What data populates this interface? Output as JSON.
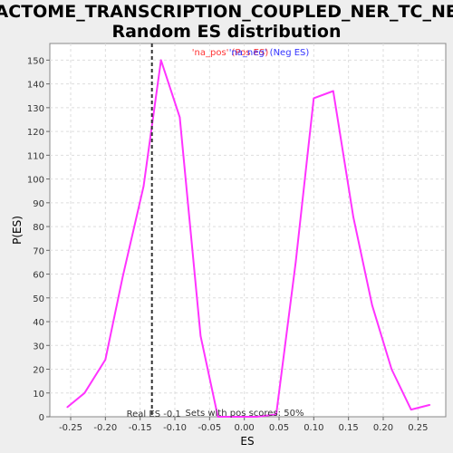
{
  "chart_data": {
    "type": "line",
    "title_line1": "REACTOME_TRANSCRIPTION_COUPLED_NER_TC_NER:",
    "title_line2": "Random ES distribution",
    "xlabel": "ES",
    "ylabel": "P(ES)",
    "xlim": [
      -0.28,
      0.29
    ],
    "ylim": [
      0,
      157
    ],
    "x_ticks": [
      -0.25,
      -0.2,
      -0.15,
      -0.1,
      -0.05,
      0.0,
      0.05,
      0.1,
      0.15,
      0.2,
      0.25
    ],
    "x_tick_labels": [
      "-0.25",
      "-0.20",
      "-0.15",
      "-0.10",
      "-0.05",
      "0.00",
      "0.05",
      "0.10",
      "0.15",
      "0.20",
      "0.25"
    ],
    "y_ticks": [
      0,
      10,
      20,
      30,
      40,
      50,
      60,
      70,
      80,
      90,
      100,
      110,
      120,
      130,
      140,
      150
    ],
    "grid": true,
    "legend_pos": {
      "label": "'na_pos' (Pos ES)",
      "color": "#ff3333"
    },
    "legend_neg": {
      "label": "'na_neg' (Neg ES)",
      "color": "#3333ff"
    },
    "series": [
      {
        "color": "#ff33ff",
        "x": [
          -0.255,
          -0.23,
          -0.2,
          -0.175,
          -0.145,
          -0.12,
          -0.093,
          -0.063,
          -0.038,
          -0.01,
          0.018,
          0.046,
          0.074,
          0.1,
          0.128,
          0.157,
          0.184,
          0.212,
          0.24,
          0.267
        ],
        "y": [
          4,
          10,
          24,
          59,
          97,
          150,
          126,
          34,
          0,
          0,
          0,
          1,
          65,
          134,
          137,
          84,
          47,
          20,
          3,
          5
        ]
      }
    ],
    "real_es": {
      "x": -0.133,
      "label": "Real ES -0.1"
    },
    "annotation": "Sets with pos scores: 50%"
  }
}
